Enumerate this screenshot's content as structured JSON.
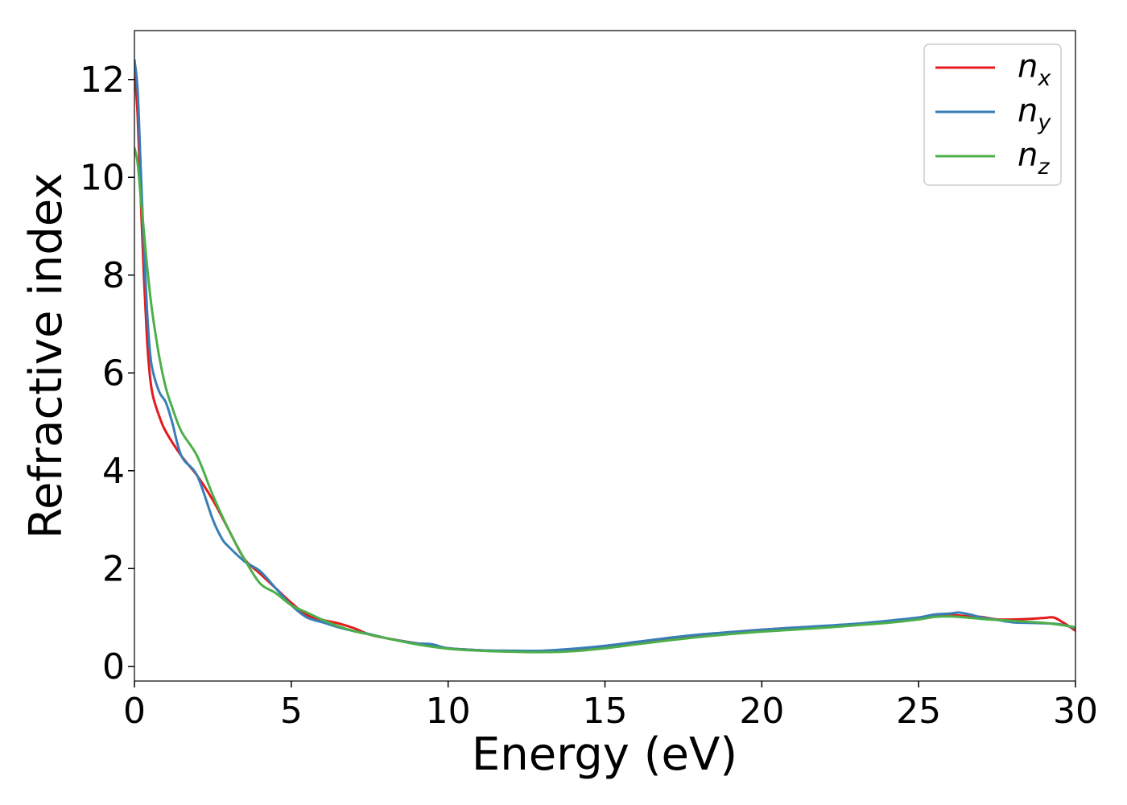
{
  "chart_data": {
    "type": "line",
    "title": "",
    "xlabel": "Energy (eV)",
    "ylabel": "Refractive index",
    "xlim": [
      0,
      30
    ],
    "ylim": [
      -0.3,
      13
    ],
    "xticks": [
      0,
      5,
      10,
      15,
      20,
      25,
      30
    ],
    "yticks": [
      0,
      2,
      4,
      6,
      8,
      10,
      12
    ],
    "grid": false,
    "legend_position": "top-right",
    "series": [
      {
        "name": "n",
        "subscript": "x",
        "color": "#e41a1c",
        "x": [
          0,
          0.1,
          0.2,
          0.3,
          0.4,
          0.5,
          0.6,
          0.8,
          1.0,
          1.5,
          2.0,
          2.5,
          3.0,
          3.5,
          4.0,
          4.5,
          5.0,
          5.5,
          6.0,
          6.5,
          7.0,
          7.5,
          8.0,
          9.0,
          10.0,
          11.0,
          12.0,
          13.0,
          14.0,
          15.0,
          16.0,
          17.0,
          18.0,
          19.0,
          20.0,
          21.0,
          22.0,
          23.0,
          24.0,
          25.0,
          25.5,
          26.0,
          26.5,
          27.0,
          27.5,
          28.0,
          28.5,
          29.0,
          29.3,
          29.6,
          30.0
        ],
        "y": [
          12.2,
          11.3,
          9.6,
          8.0,
          6.7,
          5.9,
          5.5,
          5.1,
          4.8,
          4.3,
          3.9,
          3.4,
          2.8,
          2.2,
          1.9,
          1.6,
          1.3,
          1.05,
          0.95,
          0.88,
          0.78,
          0.65,
          0.58,
          0.47,
          0.37,
          0.33,
          0.31,
          0.31,
          0.34,
          0.4,
          0.48,
          0.56,
          0.64,
          0.7,
          0.75,
          0.79,
          0.82,
          0.86,
          0.91,
          0.98,
          1.03,
          1.05,
          1.03,
          1.01,
          0.96,
          0.96,
          0.97,
          0.99,
          1.0,
          0.9,
          0.73
        ]
      },
      {
        "name": "n",
        "subscript": "y",
        "color": "#377eb8",
        "x": [
          0,
          0.1,
          0.2,
          0.3,
          0.4,
          0.5,
          0.6,
          0.8,
          1.0,
          1.2,
          1.5,
          2.0,
          2.5,
          2.8,
          3.0,
          3.5,
          4.0,
          4.5,
          5.0,
          5.5,
          6.0,
          6.5,
          7.0,
          7.5,
          8.0,
          8.5,
          9.0,
          9.5,
          10.0,
          11.0,
          12.0,
          13.0,
          14.0,
          15.0,
          16.0,
          17.0,
          18.0,
          19.0,
          20.0,
          21.0,
          22.0,
          23.0,
          24.0,
          25.0,
          25.5,
          26.0,
          26.3,
          26.7,
          27.0,
          27.5,
          28.0,
          28.5,
          29.0,
          29.5,
          30.0
        ],
        "y": [
          12.4,
          11.8,
          10.2,
          8.6,
          7.3,
          6.4,
          6.0,
          5.6,
          5.4,
          5.0,
          4.3,
          3.9,
          3.0,
          2.6,
          2.45,
          2.15,
          1.95,
          1.6,
          1.25,
          1.0,
          0.9,
          0.8,
          0.72,
          0.66,
          0.58,
          0.52,
          0.47,
          0.45,
          0.37,
          0.33,
          0.32,
          0.32,
          0.36,
          0.42,
          0.5,
          0.58,
          0.65,
          0.7,
          0.75,
          0.79,
          0.83,
          0.87,
          0.93,
          1.0,
          1.06,
          1.08,
          1.1,
          1.05,
          1.0,
          0.95,
          0.9,
          0.89,
          0.88,
          0.86,
          0.78
        ]
      },
      {
        "name": "n",
        "subscript": "z",
        "color": "#4daf4a",
        "x": [
          0,
          0.1,
          0.2,
          0.3,
          0.4,
          0.5,
          0.6,
          0.8,
          1.0,
          1.2,
          1.5,
          2.0,
          2.5,
          3.0,
          3.5,
          4.0,
          4.5,
          5.0,
          5.5,
          6.0,
          6.5,
          7.0,
          7.5,
          8.0,
          9.0,
          10.0,
          11.0,
          12.0,
          13.0,
          14.0,
          15.0,
          16.0,
          17.0,
          18.0,
          19.0,
          20.0,
          21.0,
          22.0,
          23.0,
          24.0,
          25.0,
          25.5,
          26.0,
          26.5,
          27.0,
          27.5,
          28.0,
          28.5,
          29.0,
          29.5,
          30.0
        ],
        "y": [
          10.6,
          10.3,
          9.6,
          8.9,
          8.2,
          7.6,
          7.1,
          6.3,
          5.7,
          5.3,
          4.8,
          4.3,
          3.5,
          2.8,
          2.2,
          1.7,
          1.5,
          1.25,
          1.1,
          0.95,
          0.82,
          0.72,
          0.65,
          0.58,
          0.45,
          0.36,
          0.32,
          0.3,
          0.29,
          0.31,
          0.37,
          0.45,
          0.53,
          0.6,
          0.66,
          0.71,
          0.75,
          0.79,
          0.84,
          0.89,
          0.96,
          1.01,
          1.02,
          1.0,
          0.97,
          0.95,
          0.93,
          0.91,
          0.89,
          0.85,
          0.8
        ]
      }
    ]
  }
}
